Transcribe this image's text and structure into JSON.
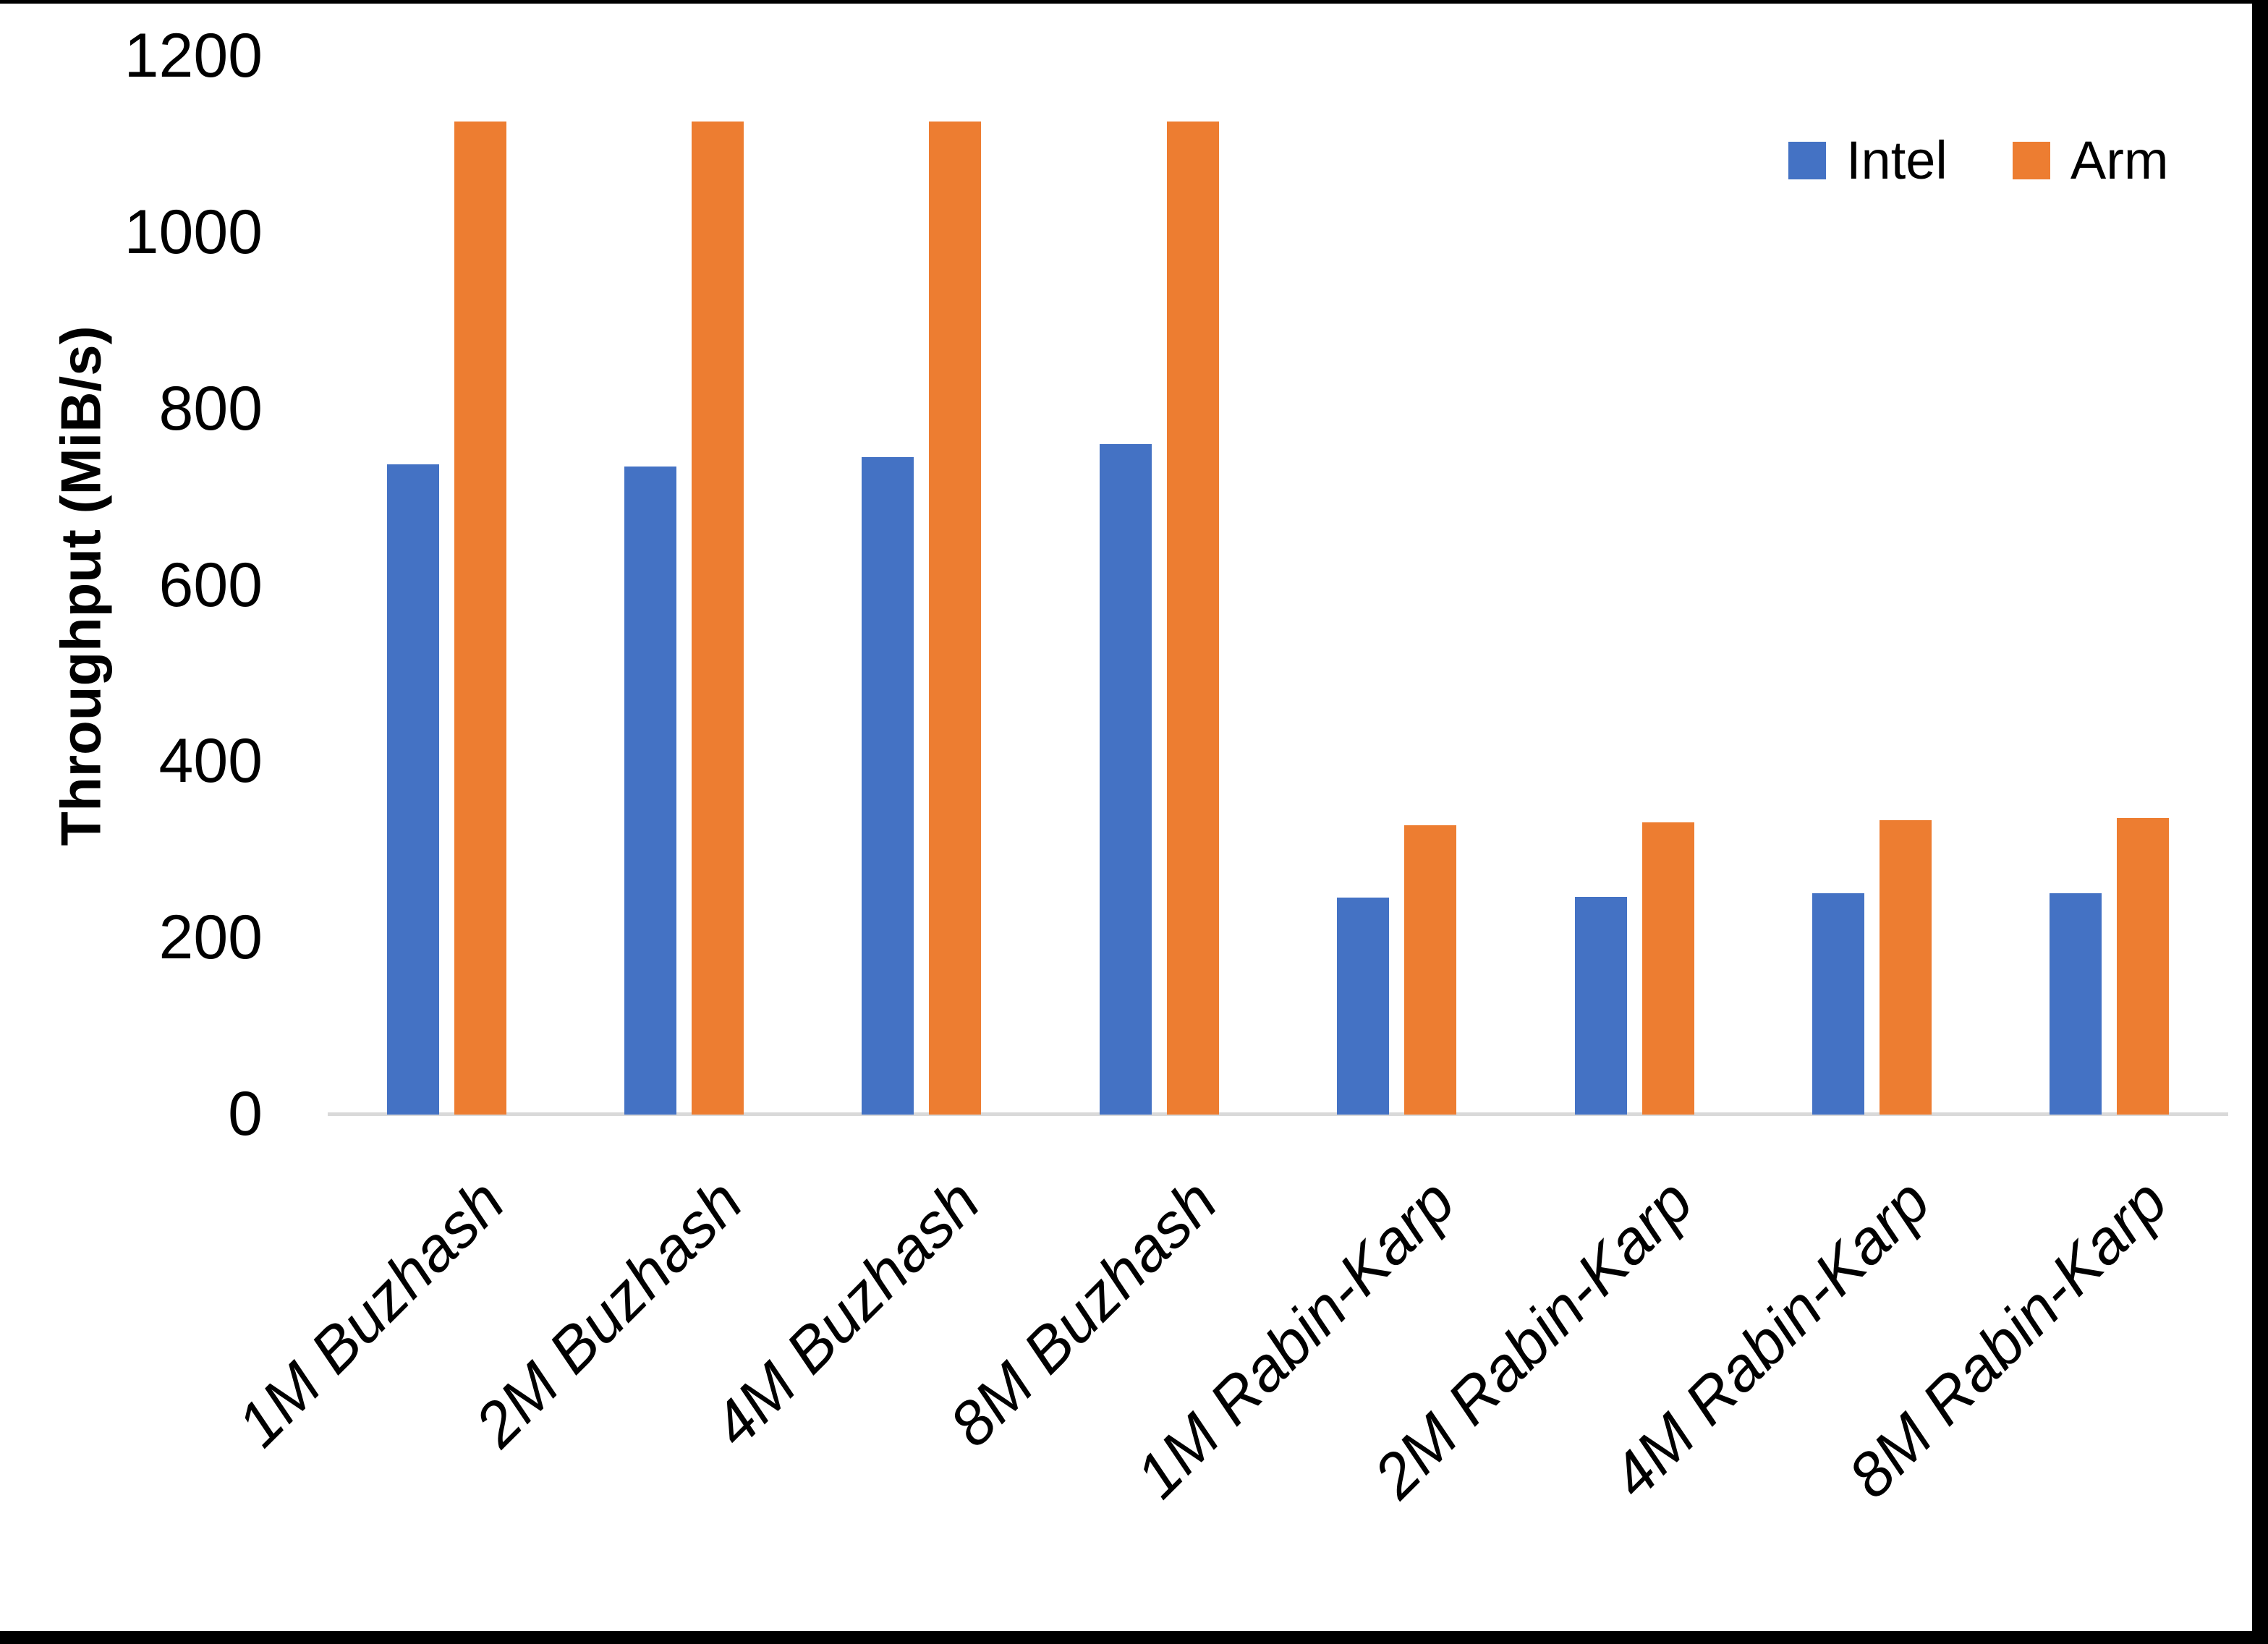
{
  "chart_data": {
    "type": "bar",
    "title": "",
    "xlabel": "",
    "ylabel": "Throughput (MiB/s)",
    "ylim": [
      0,
      1200
    ],
    "yticks": [
      0,
      200,
      400,
      600,
      800,
      1000,
      1200
    ],
    "grid": false,
    "legend_position": "top-right",
    "categories": [
      "1M Buzhash",
      "2M Buzhash",
      "4M Buzhash",
      "8M Buzhash",
      "1M Rabin-Karp",
      "2M Rabin-Karp",
      "4M Rabin-Karp",
      "8M Rabin-Karp"
    ],
    "series": [
      {
        "name": "Intel",
        "color": "#4472C4",
        "values": [
          737,
          735,
          746,
          760,
          246,
          247,
          251,
          251
        ]
      },
      {
        "name": "Arm",
        "color": "#ED7D31",
        "values": [
          1126,
          1126,
          1126,
          1126,
          328,
          331,
          334,
          336
        ]
      }
    ],
    "axis_line_color": "#D9D9D9",
    "text_color": "#000000",
    "background_color": "#ffffff",
    "border_color": "#000000"
  }
}
